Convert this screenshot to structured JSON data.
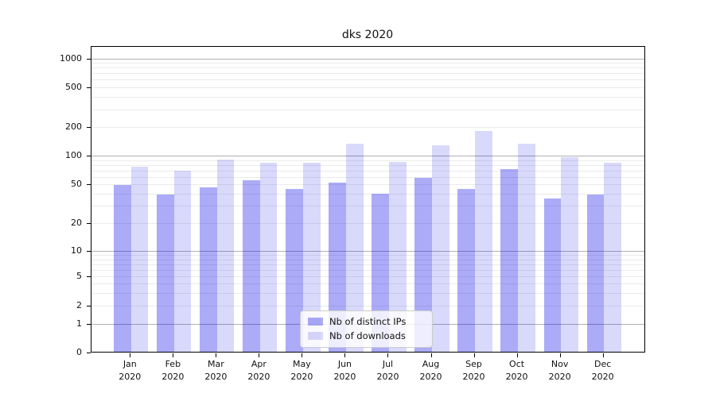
{
  "title": "dks 2020",
  "chart_data": {
    "type": "bar",
    "title": "dks 2020",
    "xlabel": "",
    "ylabel": "",
    "yscale": "symlog",
    "ylim": [
      0,
      1400
    ],
    "grid": true,
    "legend_position": "lower center",
    "y_ticks": [
      0,
      1,
      2,
      5,
      10,
      20,
      50,
      100,
      200,
      500,
      1000
    ],
    "categories": [
      "Jan 2020",
      "Feb 2020",
      "Mar 2020",
      "Apr 2020",
      "May 2020",
      "Jun 2020",
      "Jul 2020",
      "Aug 2020",
      "Sep 2020",
      "Oct 2020",
      "Nov 2020",
      "Dec 2020"
    ],
    "series": [
      {
        "name": "Nb of distinct IPs",
        "color": "rgba(0,0,230,0.33)",
        "values": [
          49,
          39,
          46,
          55,
          45,
          52,
          40,
          58,
          45,
          72,
          36,
          39
        ]
      },
      {
        "name": "Nb of downloads",
        "color": "rgba(0,0,230,0.15)",
        "values": [
          76,
          70,
          92,
          84,
          84,
          134,
          86,
          129,
          181,
          134,
          96,
          84
        ]
      }
    ]
  }
}
